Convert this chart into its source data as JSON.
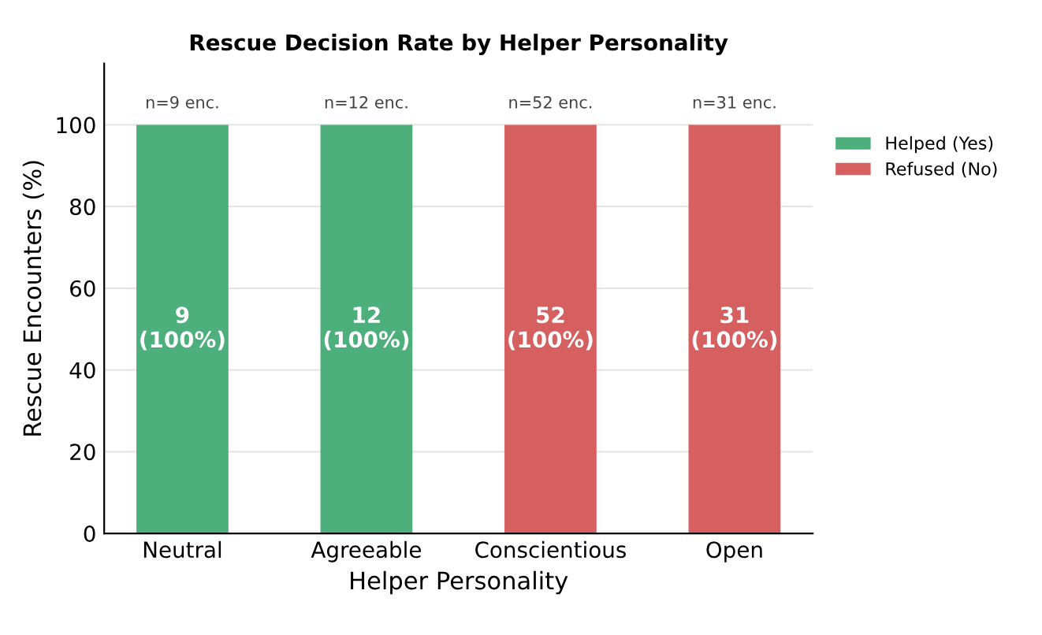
{
  "chart_data": {
    "type": "bar",
    "title": "Rescue Decision Rate by Helper Personality",
    "xlabel": "Helper Personality",
    "ylabel": "Rescue Encounters (%)",
    "categories": [
      "Neutral",
      "Agreeable",
      "Conscientious",
      "Open"
    ],
    "stacked": true,
    "series": [
      {
        "name": "Helped (Yes)",
        "color": "#4daf7c",
        "values": [
          100,
          100,
          0,
          0
        ],
        "value_labels": [
          "9\n(100%)",
          "12\n(100%)",
          null,
          null
        ]
      },
      {
        "name": "Refused (No)",
        "color": "#d65f5f",
        "values": [
          0,
          0,
          100,
          100
        ],
        "value_labels": [
          null,
          null,
          "52\n(100%)",
          "31\n(100%)"
        ]
      }
    ],
    "annotations": [
      {
        "text": "n=9 enc.",
        "x": "Neutral",
        "y": 100
      },
      {
        "text": "n=12 enc.",
        "x": "Agreeable",
        "y": 100
      },
      {
        "text": "n=52 enc.",
        "x": "Conscientious",
        "y": 100
      },
      {
        "text": "n=31 enc.",
        "x": "Open",
        "y": 100
      }
    ],
    "ylim": [
      0,
      115
    ],
    "yticks": [
      0,
      20,
      40,
      60,
      80,
      100
    ],
    "grid": "y",
    "legend": "right"
  }
}
